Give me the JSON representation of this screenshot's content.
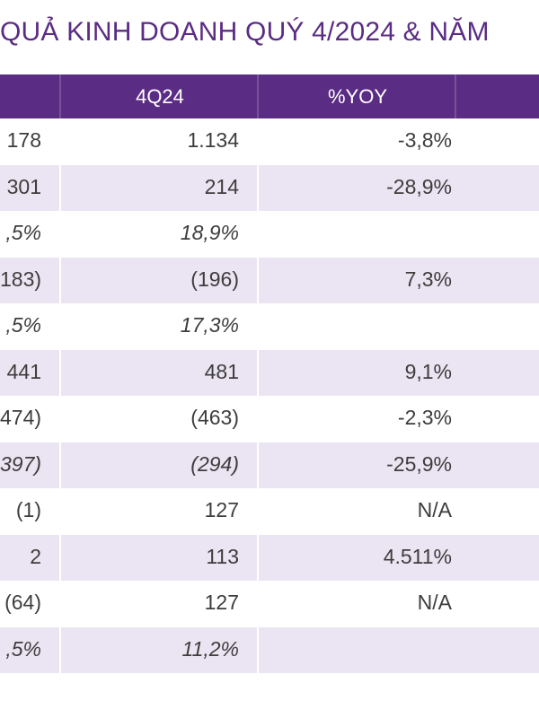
{
  "title": "QUẢ KINH DOANH QUÝ 4/2024 & NĂM",
  "header": {
    "col1": "4Q24",
    "col2": "%YOY"
  },
  "colors": {
    "header_bg": "#5b2c83",
    "row_alt": "#ebe4f2",
    "text": "#3d3d3d"
  },
  "rows": [
    {
      "prev": "178",
      "q": "1.134",
      "yoy": "-3,8%",
      "italic": false
    },
    {
      "prev": "301",
      "q": "214",
      "yoy": "-28,9%",
      "italic": false
    },
    {
      "prev": ",5%",
      "q": "18,9%",
      "yoy": "",
      "italic": true
    },
    {
      "prev": "183)",
      "q": "(196)",
      "yoy": "7,3%",
      "italic": false
    },
    {
      "prev": ",5%",
      "q": "17,3%",
      "yoy": "",
      "italic": true
    },
    {
      "prev": "441",
      "q": "481",
      "yoy": "9,1%",
      "italic": false
    },
    {
      "prev": "474)",
      "q": "(463)",
      "yoy": "-2,3%",
      "italic": false
    },
    {
      "prev": "397)",
      "q": "(294)",
      "yoy": "-25,9%",
      "italic": true
    },
    {
      "prev": "(1)",
      "q": "127",
      "yoy": "N/A",
      "italic": false
    },
    {
      "prev": "2",
      "q": "113",
      "yoy": "4.511%",
      "italic": false
    },
    {
      "prev": "(64)",
      "q": "127",
      "yoy": "N/A",
      "italic": false
    },
    {
      "prev": ",5%",
      "q": "11,2%",
      "yoy": "",
      "italic": true
    }
  ]
}
